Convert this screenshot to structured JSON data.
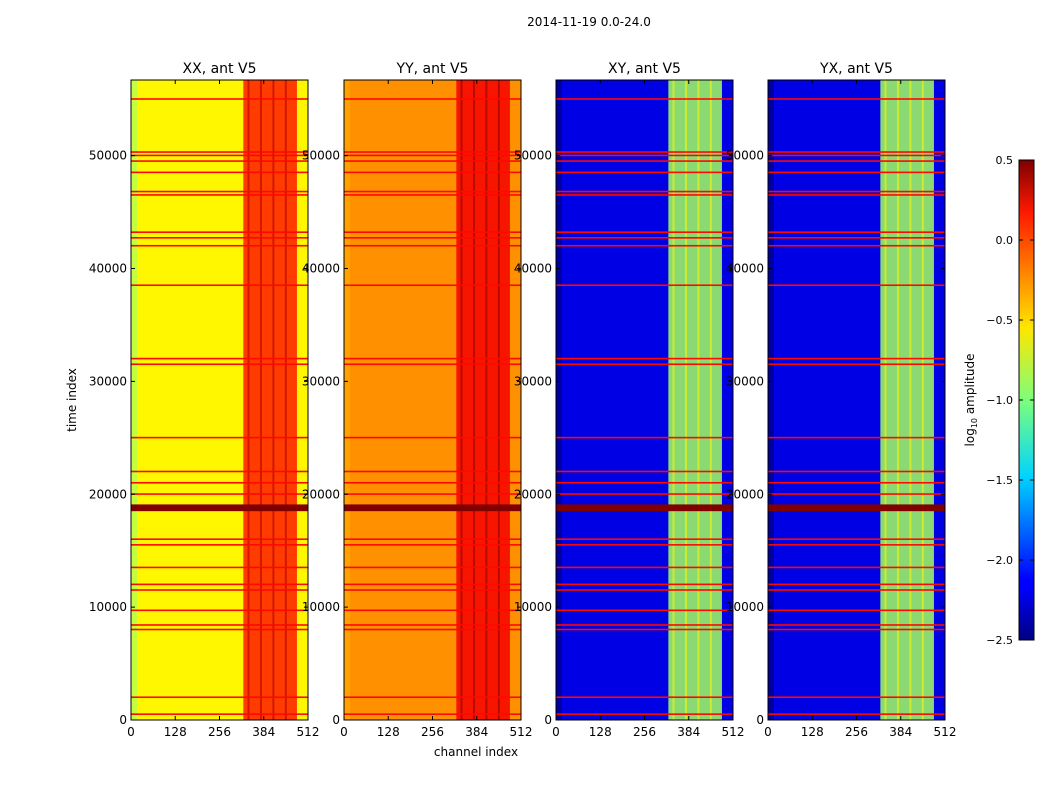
{
  "chart_data": {
    "type": "heatmap",
    "title": "2014-11-19 0.0-24.0",
    "xlabel": "channel index",
    "ylabel": "time index",
    "xlim": [
      0,
      512
    ],
    "ylim": [
      0,
      56700
    ],
    "xticks": [
      0,
      128,
      256,
      384,
      512
    ],
    "yticks": [
      0,
      10000,
      20000,
      30000,
      40000,
      50000
    ],
    "colorbar": {
      "label": "log10 amplitude",
      "range": [
        -2.5,
        0.5
      ],
      "ticks": [
        "0.5",
        "0.0",
        "−0.5",
        "−1.0",
        "−1.5",
        "−2.0",
        "−2.5"
      ],
      "colormap": "jet"
    },
    "panels": [
      {
        "title": "XX, ant V5",
        "base_level": -0.6,
        "edge_level": -0.8,
        "band_level": 0.05,
        "band_channels": [
          325,
          480
        ]
      },
      {
        "title": "YY, ant V5",
        "base_level": -0.3,
        "edge_level": -0.35,
        "band_level": 0.15,
        "band_channels": [
          325,
          480
        ]
      },
      {
        "title": "XY, ant V5",
        "base_level": -2.2,
        "edge_level": -2.4,
        "band_level": -0.9,
        "band_channels": [
          325,
          480
        ]
      },
      {
        "title": "YX, ant V5",
        "base_level": -2.2,
        "edge_level": -2.4,
        "band_level": -0.9,
        "band_channels": [
          325,
          480
        ]
      }
    ],
    "flagged_time_rows": [
      500,
      2000,
      8000,
      8400,
      9700,
      11500,
      12000,
      13500,
      15500,
      16000,
      20000,
      21000,
      22000,
      25000,
      31500,
      32000,
      38500,
      42000,
      42700,
      43200,
      46500,
      46800,
      48500,
      49500,
      50000,
      50300,
      55000
    ],
    "saturated_time_range": [
      18500,
      19100
    ],
    "flagged_level": 0.1
  }
}
